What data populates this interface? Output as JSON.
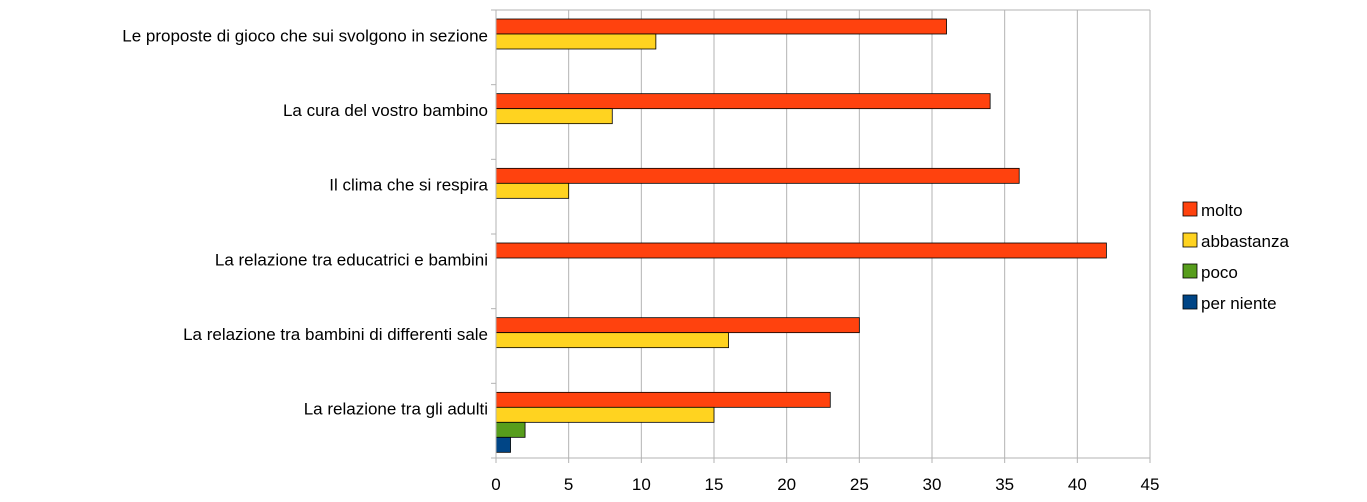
{
  "chart_data": {
    "type": "bar",
    "orientation": "horizontal",
    "categories": [
      "Le proposte di gioco che sui svolgono in sezione",
      "La cura del vostro bambino",
      "Il clima che si respira",
      "La relazione tra educatrici e bambini",
      "La relazione tra bambini di differenti sale",
      "La relazione tra gli adulti"
    ],
    "series": [
      {
        "name": "molto",
        "color": "#ff420e",
        "values": [
          31,
          34,
          36,
          42,
          25,
          23
        ]
      },
      {
        "name": "abbastanza",
        "color": "#ffd320",
        "values": [
          11,
          8,
          5,
          0,
          16,
          15
        ]
      },
      {
        "name": "poco",
        "color": "#579d1c",
        "values": [
          0,
          0,
          0,
          0,
          0,
          2
        ]
      },
      {
        "name": "per niente",
        "color": "#004586",
        "values": [
          0,
          0,
          0,
          0,
          0,
          1
        ]
      }
    ],
    "xlim": [
      0,
      45
    ],
    "xticks": [
      "0",
      "5",
      "10",
      "15",
      "20",
      "25",
      "30",
      "35",
      "40",
      "45"
    ],
    "grid": "vertical",
    "legend": "right"
  }
}
